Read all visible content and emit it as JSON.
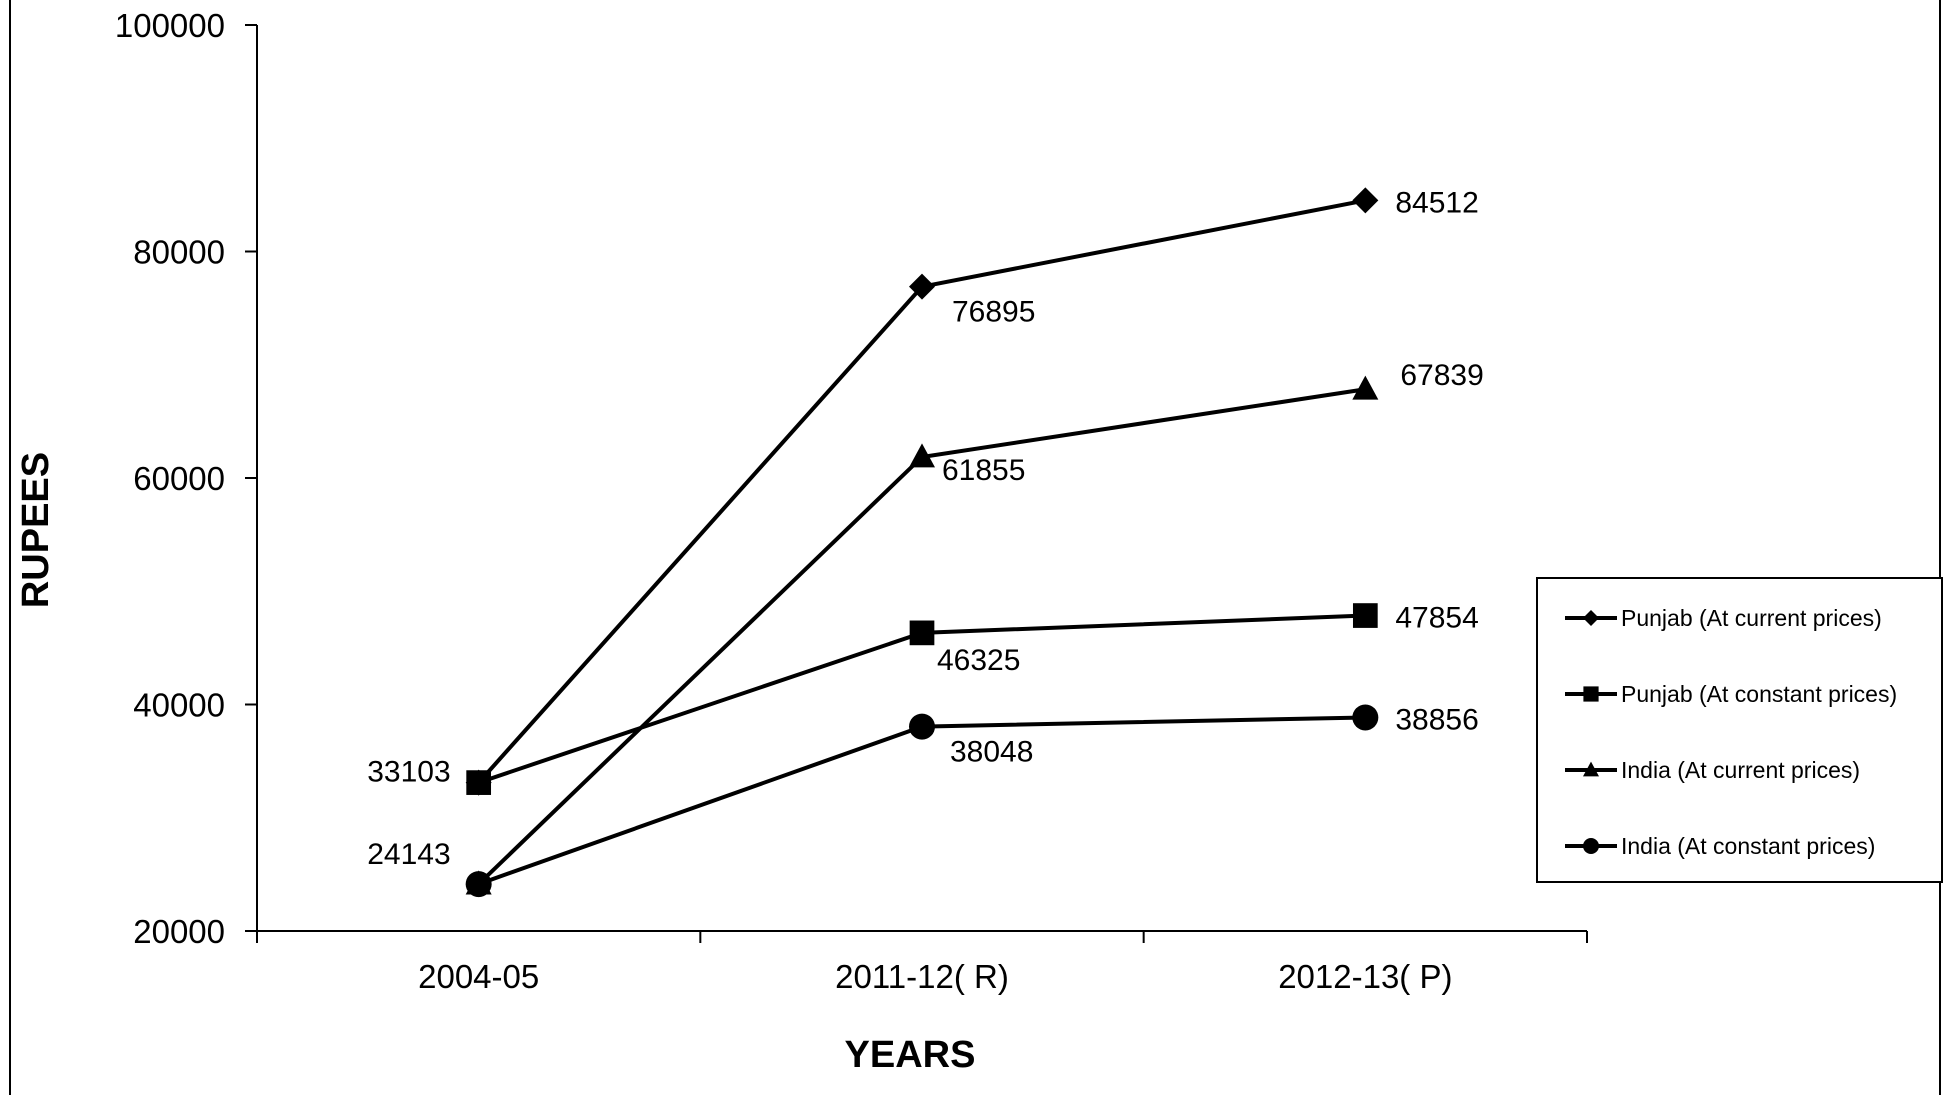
{
  "chart_data": {
    "type": "line",
    "title": "",
    "xlabel": "YEARS",
    "ylabel": "RUPEES",
    "categories": [
      "2004-05",
      "2011-12( R)",
      "2012-13( P)"
    ],
    "ylim": [
      20000,
      100000
    ],
    "yticks": [
      20000,
      40000,
      60000,
      80000,
      100000
    ],
    "grid": false,
    "legend_position": "right",
    "series": [
      {
        "name": "Punjab (At current prices)",
        "marker": "diamond",
        "values": [
          33103,
          76895,
          84512
        ]
      },
      {
        "name": "Punjab (At constant prices)",
        "marker": "square",
        "values": [
          33103,
          46325,
          47854
        ]
      },
      {
        "name": "India (At current prices)",
        "marker": "triangle",
        "values": [
          24143,
          61855,
          67839
        ]
      },
      {
        "name": "India (At constant prices)",
        "marker": "circle",
        "values": [
          24143,
          38048,
          38856
        ]
      }
    ],
    "data_labels": [
      {
        "series": 0,
        "point": 1,
        "text": "76895"
      },
      {
        "series": 0,
        "point": 2,
        "text": "84512"
      },
      {
        "series": 1,
        "point": 0,
        "text": "33103"
      },
      {
        "series": 1,
        "point": 1,
        "text": "46325"
      },
      {
        "series": 1,
        "point": 2,
        "text": "47854"
      },
      {
        "series": 2,
        "point": 1,
        "text": "61855"
      },
      {
        "series": 2,
        "point": 2,
        "text": "67839"
      },
      {
        "series": 3,
        "point": 0,
        "text": "24143"
      },
      {
        "series": 3,
        "point": 1,
        "text": "38048"
      },
      {
        "series": 3,
        "point": 2,
        "text": "38856"
      }
    ],
    "line_color": "#000000"
  }
}
